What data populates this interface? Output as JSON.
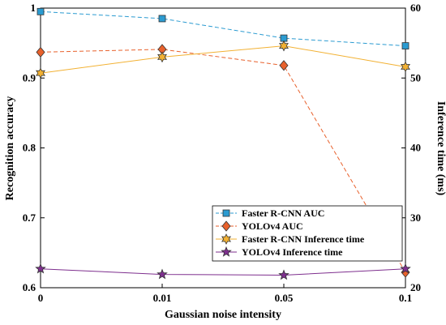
{
  "chart_data": {
    "type": "line",
    "title": "",
    "x": [
      "0",
      "0.01",
      "0.05",
      "0.1"
    ],
    "xlabel": "Gaussian noise intensity",
    "ylabel": "Recognition accuracy",
    "y2label": "Inference time (ms)",
    "ylim": [
      0.6,
      1.0
    ],
    "y2lim": [
      20,
      60
    ],
    "yticks": [
      "0.6",
      "0.7",
      "0.8",
      "0.9",
      "1"
    ],
    "y2ticks": [
      "20",
      "30",
      "40",
      "50",
      "60"
    ],
    "legend_position": "bottom-right",
    "series": [
      {
        "name": "Faster R-CNN AUC",
        "axis": "left",
        "values": [
          0.995,
          0.985,
          0.957,
          0.946
        ],
        "color": "#2b9bd1",
        "marker": "square",
        "dash": true
      },
      {
        "name": "YOLOv4 AUC",
        "axis": "left",
        "values": [
          0.937,
          0.941,
          0.918,
          0.622
        ],
        "color": "#e8612c",
        "marker": "diamond",
        "dash": true
      },
      {
        "name": "Faster R-CNN Inference time",
        "axis": "right",
        "values": [
          50.7,
          53.0,
          54.6,
          51.6
        ],
        "color": "#f2b133",
        "marker": "hexstar",
        "dash": false
      },
      {
        "name": "YOLOv4 Inference time",
        "axis": "right",
        "values": [
          22.7,
          21.9,
          21.8,
          22.7
        ],
        "color": "#7e2f8e",
        "marker": "star",
        "dash": false
      }
    ]
  }
}
